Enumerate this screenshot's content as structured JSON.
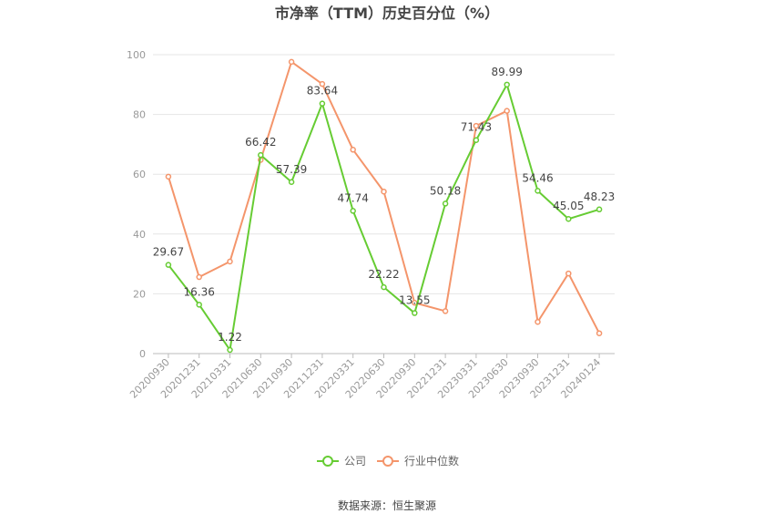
{
  "chart_data": {
    "type": "line",
    "title": "市净率（TTM）历史百分位（%）",
    "source": "数据来源：恒生聚源",
    "categories": [
      "20200930",
      "20201231",
      "20210331",
      "20210630",
      "20210930",
      "20211231",
      "20220331",
      "20220630",
      "20220930",
      "20221231",
      "20230331",
      "20230630",
      "20230930",
      "20231231",
      "20240124"
    ],
    "ylim": [
      0,
      100
    ],
    "yticks": [
      0,
      20,
      40,
      60,
      80,
      100
    ],
    "grid": true,
    "legend_position": "bottom",
    "series": [
      {
        "name": "公司",
        "color": "#66cc33",
        "values": [
          29.67,
          16.36,
          1.22,
          66.42,
          57.39,
          83.64,
          47.74,
          22.22,
          13.55,
          50.18,
          71.43,
          89.99,
          54.46,
          45.05,
          48.23
        ],
        "labels": [
          "29.67",
          "16.36",
          "1.22",
          "66.42",
          "57.39",
          "83.64",
          "47.74",
          "22.22",
          "13.55",
          "50.18",
          "71.43",
          "89.99",
          "54.46",
          "45.05",
          "48.23"
        ]
      },
      {
        "name": "行业中位数",
        "color": "#f4956b",
        "values": [
          59.2,
          25.6,
          30.8,
          64.8,
          97.6,
          90.2,
          68.2,
          54.2,
          17.0,
          14.2,
          76.2,
          81.2,
          10.6,
          26.8,
          6.8
        ]
      }
    ]
  }
}
